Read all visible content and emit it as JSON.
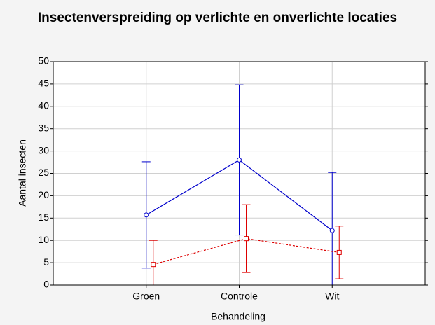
{
  "chart_data": {
    "type": "line",
    "title": "Insectenverspreiding op verlichte en onverlichte locaties",
    "xlabel": "Behandeling",
    "ylabel": "Aantal insecten",
    "categories": [
      "Groen",
      "Controle",
      "Wit"
    ],
    "series": [
      {
        "color": "#0000cc",
        "dash": false,
        "marker": "circle",
        "values": [
          15.7,
          28,
          12.2
        ],
        "errors": [
          11.9,
          16.8,
          13
        ]
      },
      {
        "color": "#dd0000",
        "dash": true,
        "marker": "square",
        "values": [
          4.6,
          10.4,
          7.3
        ],
        "errors": [
          5.4,
          7.6,
          5.9
        ]
      }
    ],
    "ylim": [
      0,
      50
    ],
    "yticks": [
      0,
      5,
      10,
      15,
      20,
      25,
      30,
      35,
      40,
      45,
      50
    ],
    "grid": true
  }
}
